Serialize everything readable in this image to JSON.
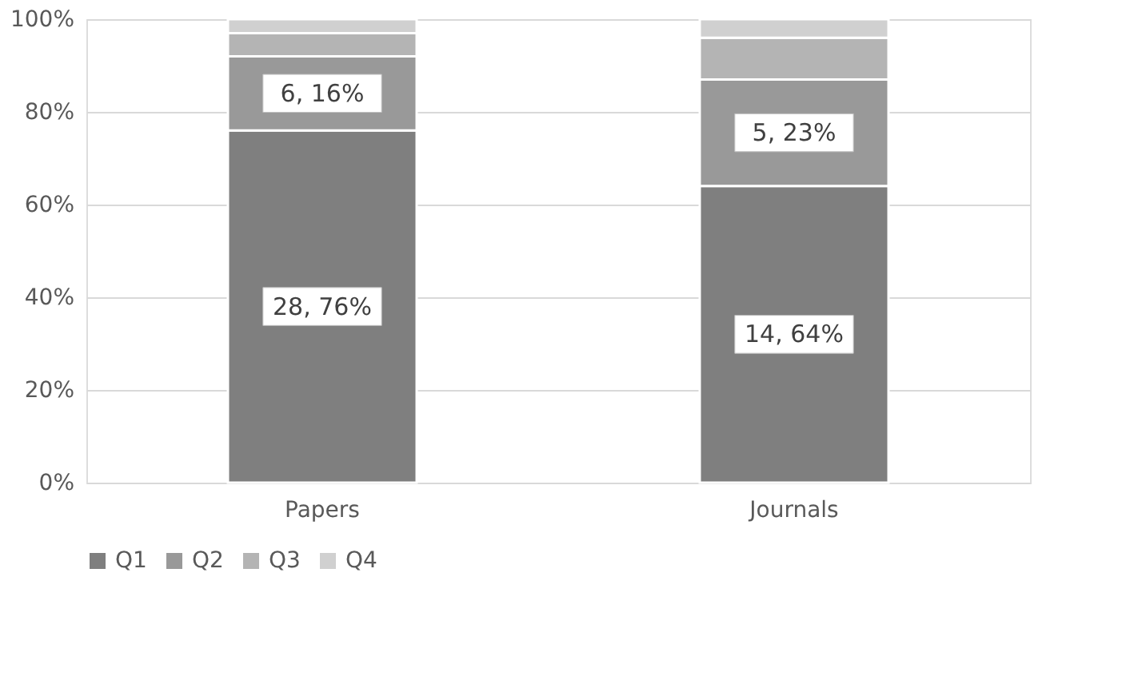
{
  "chart_data": {
    "type": "bar",
    "stacked": true,
    "categories": [
      "Papers",
      "Journals"
    ],
    "series": [
      {
        "name": "Q1",
        "color": "#7f7f7f",
        "values": [
          76,
          64
        ],
        "value_labels": [
          "28, 76%",
          "14, 64%"
        ]
      },
      {
        "name": "Q2",
        "color": "#999999",
        "values": [
          16,
          23
        ],
        "value_labels": [
          "6, 16%",
          "5, 23%"
        ]
      },
      {
        "name": "Q3",
        "color": "#b4b4b4",
        "values": [
          5,
          9
        ],
        "value_labels": [
          null,
          null
        ]
      },
      {
        "name": "Q4",
        "color": "#d0d0d0",
        "values": [
          3,
          4
        ],
        "value_labels": [
          null,
          null
        ]
      }
    ],
    "ylim": [
      0,
      100
    ],
    "yticks": [
      {
        "value": 0,
        "label": "0%"
      },
      {
        "value": 20,
        "label": "20%"
      },
      {
        "value": 40,
        "label": "40%"
      },
      {
        "value": 60,
        "label": "60%"
      },
      {
        "value": 80,
        "label": "80%"
      },
      {
        "value": 100,
        "label": "100%"
      }
    ],
    "grid": "y",
    "legend": "bottom"
  }
}
